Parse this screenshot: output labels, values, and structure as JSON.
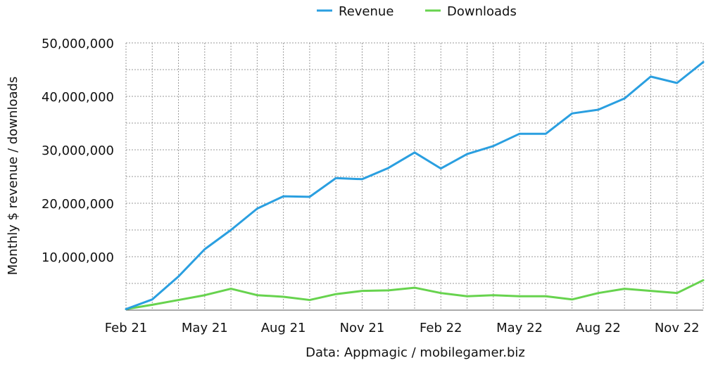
{
  "chart_data": {
    "type": "line",
    "legend_position": "top-center",
    "grid": true,
    "ylabel": "Monthly $ revenue / downloads",
    "xlabel": "Data: Appmagic / mobilegamer.biz",
    "ylim": [
      0,
      50000000
    ],
    "yticks": [
      {
        "value": 10000000,
        "label": "10,000,000"
      },
      {
        "value": 20000000,
        "label": "20,000,000"
      },
      {
        "value": 30000000,
        "label": "30,000,000"
      },
      {
        "value": 40000000,
        "label": "40,000,000"
      },
      {
        "value": 50000000,
        "label": "50,000,000"
      }
    ],
    "x": [
      "Feb 21",
      "Mar 21",
      "Apr 21",
      "May 21",
      "Jun 21",
      "Jul 21",
      "Aug 21",
      "Sep 21",
      "Oct 21",
      "Nov 21",
      "Dec 21",
      "Jan 22",
      "Feb 22",
      "Mar 22",
      "Apr 22",
      "May 22",
      "Jun 22",
      "Jul 22",
      "Aug 22",
      "Sep 22",
      "Oct 22",
      "Nov 22",
      "Dec 22"
    ],
    "xticks": [
      "Feb 21",
      "May 21",
      "Aug 21",
      "Nov 21",
      "Feb 22",
      "May 22",
      "Aug 22",
      "Nov 22"
    ],
    "series": [
      {
        "name": "Revenue",
        "color": "#2a9fe0",
        "values": [
          200000,
          2000000,
          6300000,
          11400000,
          15000000,
          19000000,
          21300000,
          21200000,
          24700000,
          24500000,
          26600000,
          29500000,
          26500000,
          29200000,
          30700000,
          33000000,
          33000000,
          36800000,
          37500000,
          39600000,
          43700000,
          42500000,
          46400000
        ]
      },
      {
        "name": "Downloads",
        "color": "#67d34e",
        "values": [
          200000,
          1000000,
          1900000,
          2800000,
          4000000,
          2800000,
          2500000,
          1900000,
          3000000,
          3600000,
          3700000,
          4200000,
          3200000,
          2600000,
          2800000,
          2600000,
          2600000,
          2000000,
          3200000,
          4000000,
          3600000,
          3200000,
          5600000
        ]
      }
    ]
  }
}
